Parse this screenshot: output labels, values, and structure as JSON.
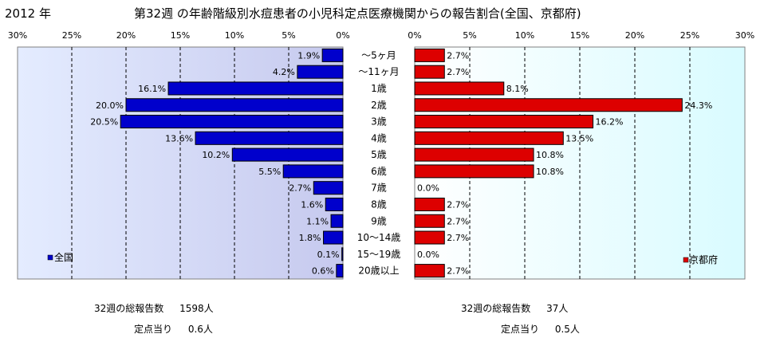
{
  "header": {
    "year": "2012 年",
    "title": "第32週 の年齢階級別水痘患者の小児科定点医療機関からの報告割合(全国、京都府)"
  },
  "chart_data": {
    "type": "bar",
    "categories": [
      "～5ヶ月",
      "～11ヶ月",
      "1歳",
      "2歳",
      "3歳",
      "4歳",
      "5歳",
      "6歳",
      "7歳",
      "8歳",
      "9歳",
      "10～14歳",
      "15～19歳",
      "20歳以上"
    ],
    "xlim": [
      0,
      30
    ],
    "ticks": [
      "0%",
      "5%",
      "10%",
      "15%",
      "20%",
      "25%",
      "30%"
    ],
    "series": [
      {
        "name": "全国",
        "color": "#0000cc",
        "values": [
          1.9,
          4.2,
          16.1,
          20.0,
          20.5,
          13.6,
          10.2,
          5.5,
          2.7,
          1.6,
          1.1,
          1.8,
          0.1,
          0.6
        ],
        "labels": [
          "1.9%",
          "4.2%",
          "16.1%",
          "20.0%",
          "20.5%",
          "13.6%",
          "10.2%",
          "5.5%",
          "2.7%",
          "1.6%",
          "1.1%",
          "1.8%",
          "0.1%",
          "0.6%"
        ]
      },
      {
        "name": "京都府",
        "color": "#dd0000",
        "values": [
          2.7,
          2.7,
          8.1,
          24.3,
          16.2,
          13.5,
          10.8,
          10.8,
          0.0,
          2.7,
          2.7,
          2.7,
          0.0,
          2.7
        ],
        "labels": [
          "2.7%",
          "2.7%",
          "8.1%",
          "24.3%",
          "16.2%",
          "13.5%",
          "10.8%",
          "10.8%",
          "0.0%",
          "2.7%",
          "2.7%",
          "2.7%",
          "0.0%",
          "2.7%"
        ]
      }
    ],
    "grid": true,
    "legend_left": "bottom-left",
    "legend_right": "bottom-right"
  },
  "summary": {
    "national": {
      "total_label": "32週の総報告数",
      "total_value": "1598人",
      "per_label": "定点当り",
      "per_value": "0.6人"
    },
    "kyoto": {
      "total_label": "32週の総報告数",
      "total_value": "37人",
      "per_label": "定点当り",
      "per_value": "0.5人"
    }
  }
}
